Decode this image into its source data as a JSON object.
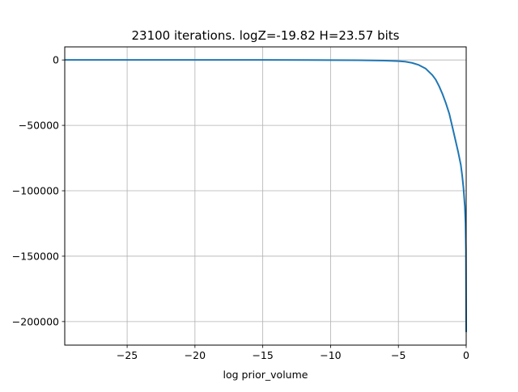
{
  "chart_data": {
    "type": "line",
    "title": "23100 iterations. logZ=-19.82 H=23.57 bits",
    "xlabel": "log prior_volume",
    "ylabel": "",
    "xlim": [
      -29.6,
      0
    ],
    "ylim": [
      -218000,
      10000
    ],
    "grid": true,
    "x_ticks": [
      {
        "value": -25,
        "label": "−25"
      },
      {
        "value": -20,
        "label": "−20"
      },
      {
        "value": -15,
        "label": "−15"
      },
      {
        "value": -10,
        "label": "−10"
      },
      {
        "value": -5,
        "label": "−5"
      },
      {
        "value": 0,
        "label": "0"
      }
    ],
    "y_ticks": [
      {
        "value": 0,
        "label": "0"
      },
      {
        "value": -50000,
        "label": "−50000"
      },
      {
        "value": -100000,
        "label": "−100000"
      },
      {
        "value": -150000,
        "label": "−150000"
      },
      {
        "value": -200000,
        "label": "−200000"
      }
    ],
    "series": [
      {
        "color": "#1f77b4",
        "x": [
          -29.6,
          -25,
          -20,
          -15,
          -10,
          -8,
          -6,
          -5,
          -4.5,
          -4,
          -3.5,
          -3,
          -2.5,
          -2.25,
          -2,
          -1.75,
          -1.5,
          -1.25,
          -1,
          -0.8,
          -0.6,
          -0.4,
          -0.3,
          -0.2,
          -0.1,
          -0.05,
          -0.02,
          0
        ],
        "y": [
          0,
          0,
          0,
          0,
          -100,
          -200,
          -500,
          -900,
          -1300,
          -2200,
          -3800,
          -6500,
          -11500,
          -15000,
          -20000,
          -26000,
          -33000,
          -41000,
          -52000,
          -61000,
          -70000,
          -80000,
          -88000,
          -98000,
          -112000,
          -125000,
          -145000,
          -208000
        ]
      }
    ]
  }
}
